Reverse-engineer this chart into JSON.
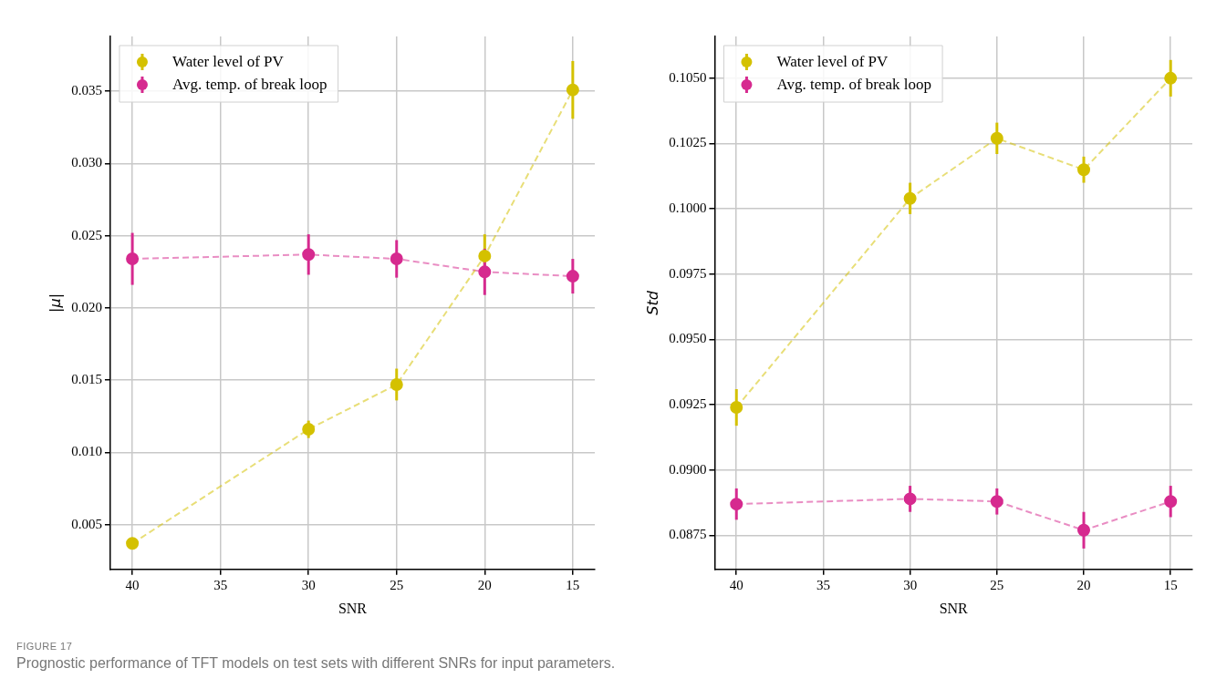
{
  "chart_data": [
    {
      "type": "line",
      "xlabel": "SNR",
      "ylabel": "|μ|",
      "x": [
        40,
        30,
        25,
        20,
        15
      ],
      "xlim": [
        41.25,
        13.75
      ],
      "xticks": [
        40,
        35,
        30,
        25,
        20,
        15
      ],
      "ylim": [
        0.0019,
        0.0388
      ],
      "yticks": [
        {
          "value": 0.005,
          "label": "0.005"
        },
        {
          "value": 0.01,
          "label": "0.010"
        },
        {
          "value": 0.015,
          "label": "0.015"
        },
        {
          "value": 0.02,
          "label": "0.020"
        },
        {
          "value": 0.025,
          "label": "0.025"
        },
        {
          "value": 0.03,
          "label": "0.030"
        },
        {
          "value": 0.035,
          "label": "0.035"
        }
      ],
      "grid": true,
      "legend": "top left",
      "marker": "circle",
      "line_style": "dashed",
      "series": [
        {
          "name": "Water level of PV",
          "color": "#d4c100",
          "values": [
            0.0037,
            0.0116,
            0.0147,
            0.0236,
            0.0351
          ],
          "errors": [
            null,
            0.0006,
            0.0011,
            0.0015,
            0.002
          ]
        },
        {
          "name": "Avg. temp. of break loop",
          "color": "#d62a8f",
          "values": [
            0.0234,
            0.0237,
            0.0234,
            0.0225,
            0.0222
          ],
          "errors": [
            0.0018,
            0.0014,
            0.0013,
            0.0016,
            0.0012
          ]
        }
      ]
    },
    {
      "type": "line",
      "xlabel": "SNR",
      "ylabel": "Std",
      "x": [
        40,
        30,
        25,
        20,
        15
      ],
      "xlim": [
        41.25,
        13.75
      ],
      "xticks": [
        40,
        35,
        30,
        25,
        20,
        15
      ],
      "ylim": [
        0.0862,
        0.1066
      ],
      "yticks": [
        0.0875,
        {
          "value": 0.09,
          "label": "0.0900"
        },
        0.0925,
        {
          "value": 0.095,
          "label": "0.0950"
        },
        0.0975,
        {
          "value": 0.1,
          "label": "0.1000"
        },
        0.1025,
        {
          "value": 0.105,
          "label": "0.1050"
        }
      ],
      "grid": true,
      "legend": "top left",
      "marker": "circle",
      "line_style": "dashed",
      "series": [
        {
          "name": "Water level of PV",
          "color": "#d4c100",
          "values": [
            0.0924,
            0.1004,
            0.1027,
            0.1015,
            0.105
          ],
          "errors": [
            0.0007,
            0.0006,
            0.0006,
            0.0005,
            0.0007
          ]
        },
        {
          "name": "Avg. temp. of break loop",
          "color": "#d62a8f",
          "values": [
            0.0887,
            0.0889,
            0.0888,
            0.0877,
            0.0888
          ],
          "errors": [
            0.0006,
            0.0005,
            0.0005,
            0.0007,
            0.0006
          ]
        }
      ],
      "annotations": [
        "FIGURE 17",
        "Prognostic performance of TFT models on test sets with different SNRs for input parameters."
      ]
    }
  ]
}
